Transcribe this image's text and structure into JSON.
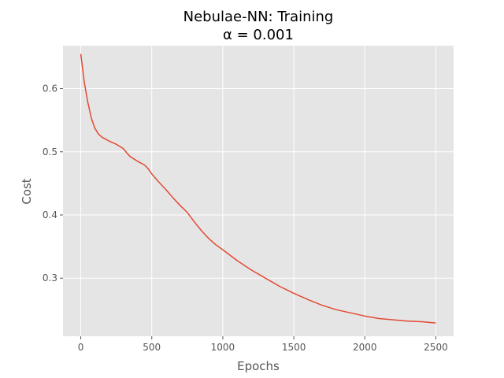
{
  "chart_data": {
    "type": "line",
    "title": "Nebulae-NN: Training",
    "subtitle": "α = 0.001",
    "xlabel": "Epochs",
    "ylabel": "Cost",
    "xlim": [
      -125,
      2625
    ],
    "ylim": [
      0.208,
      0.668
    ],
    "x_ticks": [
      0,
      500,
      1000,
      1500,
      2000,
      2500
    ],
    "y_ticks": [
      0.3,
      0.4,
      0.5,
      0.6
    ],
    "x_tick_labels": [
      "0",
      "500",
      "1000",
      "1500",
      "2000",
      "2500"
    ],
    "y_tick_labels": [
      "0.3",
      "0.4",
      "0.5",
      "0.6"
    ],
    "grid": true,
    "style": "ggplot",
    "colors": {
      "plot_background": "#e5e5e5",
      "grid": "#ffffff",
      "line": "#e24a33",
      "tick_text": "#555555"
    },
    "series": [
      {
        "name": "",
        "x": [
          0,
          25,
          50,
          75,
          100,
          125,
          150,
          175,
          200,
          250,
          300,
          325,
          350,
          400,
          450,
          475,
          500,
          550,
          600,
          650,
          700,
          750,
          800,
          850,
          900,
          950,
          1000,
          1100,
          1200,
          1300,
          1400,
          1500,
          1600,
          1700,
          1800,
          1900,
          2000,
          2100,
          2200,
          2300,
          2400,
          2500
        ],
        "y": [
          0.655,
          0.61,
          0.578,
          0.553,
          0.537,
          0.528,
          0.523,
          0.52,
          0.517,
          0.512,
          0.505,
          0.498,
          0.492,
          0.485,
          0.479,
          0.473,
          0.465,
          0.452,
          0.44,
          0.427,
          0.415,
          0.404,
          0.389,
          0.375,
          0.363,
          0.353,
          0.345,
          0.328,
          0.313,
          0.3,
          0.287,
          0.276,
          0.266,
          0.257,
          0.25,
          0.245,
          0.24,
          0.236,
          0.234,
          0.232,
          0.231,
          0.229
        ]
      }
    ]
  }
}
